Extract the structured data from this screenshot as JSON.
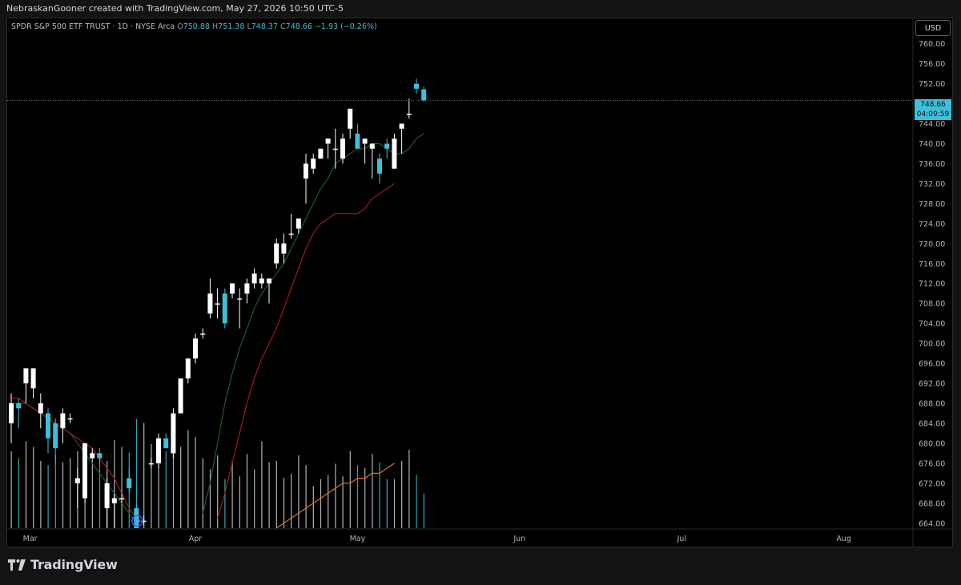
{
  "header": {
    "attribution": "NebraskanGooner created with TradingView.com, May 27, 2026 10:50 UTC-5"
  },
  "legend": {
    "symbol": "SPDR S&P 500 ETF TRUST · 1D · NYSE Arca",
    "o_label": "O",
    "o_value": "750.88",
    "h_label": "H",
    "h_value": "751.38",
    "l_label": "L",
    "l_value": "748.37",
    "c_label": "C",
    "c_value": "748.66",
    "change": "−1.93 (−0.26%)"
  },
  "currency_button": "USD",
  "last_price": {
    "price": "748.66",
    "countdown": "04:09:59"
  },
  "footer": {
    "brand": "TradingView",
    "logo_icon": "tradingview-logo-icon"
  },
  "dividend_marker": "D",
  "colors": {
    "background": "#000000",
    "up": "#ffffff",
    "down": "#3fbfd8",
    "ma_short": "#1f5a2a",
    "ma_mid": "#9b1c1c",
    "ma_long": "#e0702a"
  },
  "chart_data": {
    "type": "candlestick",
    "ylim": [
      663,
      763
    ],
    "y_ticks": [
      "760.00",
      "756.00",
      "752.00",
      "748.00",
      "744.00",
      "740.00",
      "736.00",
      "732.00",
      "728.00",
      "724.00",
      "720.00",
      "716.00",
      "712.00",
      "708.00",
      "704.00",
      "700.00",
      "696.00",
      "692.00",
      "688.00",
      "684.00",
      "680.00",
      "676.00",
      "672.00",
      "668.00",
      "664.00"
    ],
    "x_labels": [
      {
        "label": "Mar",
        "bar": 3
      },
      {
        "label": "Apr",
        "bar": 25
      },
      {
        "label": "May",
        "bar": 47
      },
      {
        "label": "Jun",
        "bar": 69
      },
      {
        "label": "Jul",
        "bar": 91
      },
      {
        "label": "Aug",
        "bar": 113
      }
    ],
    "candles": [
      {
        "o": 684,
        "h": 690,
        "l": 680,
        "c": 688
      },
      {
        "o": 688,
        "h": 689,
        "l": 683,
        "c": 687
      },
      {
        "o": 692,
        "h": 695,
        "l": 688,
        "c": 695
      },
      {
        "o": 691,
        "h": 695,
        "l": 689,
        "c": 695
      },
      {
        "o": 686,
        "h": 690,
        "l": 683,
        "c": 688
      },
      {
        "o": 686,
        "h": 687,
        "l": 678,
        "c": 681
      },
      {
        "o": 684,
        "h": 685,
        "l": 676,
        "c": 679
      },
      {
        "o": 683,
        "h": 687,
        "l": 680,
        "c": 686
      },
      {
        "o": 685,
        "h": 686,
        "l": 684,
        "c": 685
      },
      {
        "o": 672,
        "h": 675,
        "l": 667,
        "c": 673
      },
      {
        "o": 669,
        "h": 680,
        "l": 668,
        "c": 680
      },
      {
        "o": 677,
        "h": 679,
        "l": 677,
        "c": 678
      },
      {
        "o": 678,
        "h": 679,
        "l": 676,
        "c": 677
      },
      {
        "o": 667,
        "h": 673,
        "l": 663,
        "c": 672
      },
      {
        "o": 668,
        "h": 670,
        "l": 663,
        "c": 669
      },
      {
        "o": 669,
        "h": 670,
        "l": 668,
        "c": 669
      },
      {
        "o": 673,
        "h": 675,
        "l": 670,
        "c": 671
      },
      {
        "o": 667,
        "h": 668,
        "l": 663,
        "c": 663
      },
      {
        "o": 664.5,
        "h": 665.5,
        "l": 663.5,
        "c": 664.5
      },
      {
        "o": 676,
        "h": 677,
        "l": 675,
        "c": 676
      },
      {
        "o": 676,
        "h": 682,
        "l": 675,
        "c": 681
      },
      {
        "o": 681,
        "h": 682,
        "l": 679,
        "c": 679
      },
      {
        "o": 678,
        "h": 687,
        "l": 677,
        "c": 686
      },
      {
        "o": 686,
        "h": 693,
        "l": 686,
        "c": 693
      },
      {
        "o": 693,
        "h": 697,
        "l": 692,
        "c": 697
      },
      {
        "o": 697,
        "h": 702,
        "l": 696,
        "c": 701
      },
      {
        "o": 702,
        "h": 703,
        "l": 701,
        "c": 702
      },
      {
        "o": 706,
        "h": 713,
        "l": 705,
        "c": 710
      },
      {
        "o": 708,
        "h": 711,
        "l": 705,
        "c": 708
      },
      {
        "o": 710,
        "h": 711,
        "l": 703,
        "c": 704
      },
      {
        "o": 710,
        "h": 712,
        "l": 709,
        "c": 712
      },
      {
        "o": 709,
        "h": 711,
        "l": 703,
        "c": 709
      },
      {
        "o": 710,
        "h": 713,
        "l": 708,
        "c": 712
      },
      {
        "o": 712,
        "h": 715,
        "l": 711,
        "c": 714
      },
      {
        "o": 712,
        "h": 714,
        "l": 711,
        "c": 713
      },
      {
        "o": 712,
        "h": 713,
        "l": 708,
        "c": 713
      },
      {
        "o": 716,
        "h": 721,
        "l": 715,
        "c": 720
      },
      {
        "o": 718,
        "h": 722,
        "l": 716,
        "c": 720
      },
      {
        "o": 722,
        "h": 726,
        "l": 721,
        "c": 722
      },
      {
        "o": 723,
        "h": 725,
        "l": 722,
        "c": 725
      },
      {
        "o": 733,
        "h": 738,
        "l": 728,
        "c": 736
      },
      {
        "o": 735,
        "h": 738,
        "l": 734,
        "c": 737
      },
      {
        "o": 737,
        "h": 739,
        "l": 737,
        "c": 739
      },
      {
        "o": 740,
        "h": 741,
        "l": 737,
        "c": 741
      },
      {
        "o": 739,
        "h": 743,
        "l": 735,
        "c": 739
      },
      {
        "o": 737,
        "h": 742,
        "l": 736,
        "c": 741
      },
      {
        "o": 743,
        "h": 747,
        "l": 741,
        "c": 747
      },
      {
        "o": 742,
        "h": 744,
        "l": 739,
        "c": 739
      },
      {
        "o": 740,
        "h": 740,
        "l": 736,
        "c": 741
      },
      {
        "o": 739,
        "h": 740,
        "l": 733,
        "c": 740
      },
      {
        "o": 737,
        "h": 738,
        "l": 732,
        "c": 734
      },
      {
        "o": 740,
        "h": 741,
        "l": 737,
        "c": 739
      },
      {
        "o": 735,
        "h": 742,
        "l": 735,
        "c": 741
      },
      {
        "o": 743,
        "h": 744,
        "l": 738,
        "c": 744
      },
      {
        "o": 746,
        "h": 749,
        "l": 745,
        "c": 746
      },
      {
        "o": 752,
        "h": 753,
        "l": 750,
        "c": 751
      },
      {
        "o": 750.88,
        "h": 751.38,
        "l": 748.37,
        "c": 748.66
      }
    ],
    "volume_relative": [
      0.55,
      0.5,
      0.62,
      0.58,
      0.48,
      0.45,
      0.52,
      0.47,
      0.5,
      0.55,
      0.6,
      0.55,
      0.52,
      0.48,
      0.63,
      0.58,
      0.54,
      0.78,
      0.75,
      0.6,
      0.5,
      0.55,
      0.62,
      0.58,
      0.7,
      0.65,
      0.5,
      0.42,
      0.52,
      0.35,
      0.48,
      0.37,
      0.53,
      0.42,
      0.62,
      0.47,
      0.48,
      0.36,
      0.39,
      0.52,
      0.45,
      0.3,
      0.35,
      0.38,
      0.46,
      0.37,
      0.55,
      0.45,
      0.43,
      0.53,
      0.47,
      0.35,
      0.35,
      0.48,
      0.56,
      0.38,
      0.25
    ],
    "moving_averages": [
      {
        "color": "#1f5a2a",
        "values": [
          688,
          688,
          688,
          687,
          686,
          685,
          684,
          683,
          682,
          680,
          678,
          676,
          674,
          672,
          670,
          668,
          666,
          664,
          null,
          null,
          null,
          null,
          null,
          null,
          null,
          null,
          666,
          672,
          680,
          688,
          694,
          699,
          703,
          707,
          710,
          712,
          714,
          716,
          719,
          722,
          725,
          728,
          731,
          733,
          736,
          737,
          738,
          739,
          739,
          740,
          740,
          739,
          738,
          738,
          739,
          741,
          742
        ]
      },
      {
        "color": "#9b1c1c",
        "values": [
          689,
          689,
          688,
          687,
          686,
          685,
          684,
          683,
          682,
          681,
          680,
          679,
          677,
          675,
          673,
          670,
          667,
          665,
          664,
          null,
          null,
          null,
          null,
          null,
          null,
          null,
          null,
          null,
          665,
          670,
          676,
          682,
          688,
          693,
          697,
          700,
          703,
          707,
          711,
          715,
          719,
          722,
          724,
          725,
          726,
          726,
          726,
          726,
          727,
          729,
          730,
          731,
          732
        ]
      },
      {
        "color": "#e0702a",
        "values": [
          null,
          null,
          null,
          null,
          null,
          null,
          null,
          null,
          null,
          null,
          null,
          null,
          null,
          null,
          null,
          null,
          null,
          null,
          null,
          null,
          null,
          null,
          null,
          null,
          null,
          null,
          null,
          null,
          null,
          null,
          null,
          null,
          null,
          null,
          null,
          null,
          663,
          664,
          665,
          666,
          667,
          668,
          669,
          670,
          671,
          672,
          672,
          673,
          673,
          674,
          674,
          675,
          676
        ]
      }
    ]
  }
}
